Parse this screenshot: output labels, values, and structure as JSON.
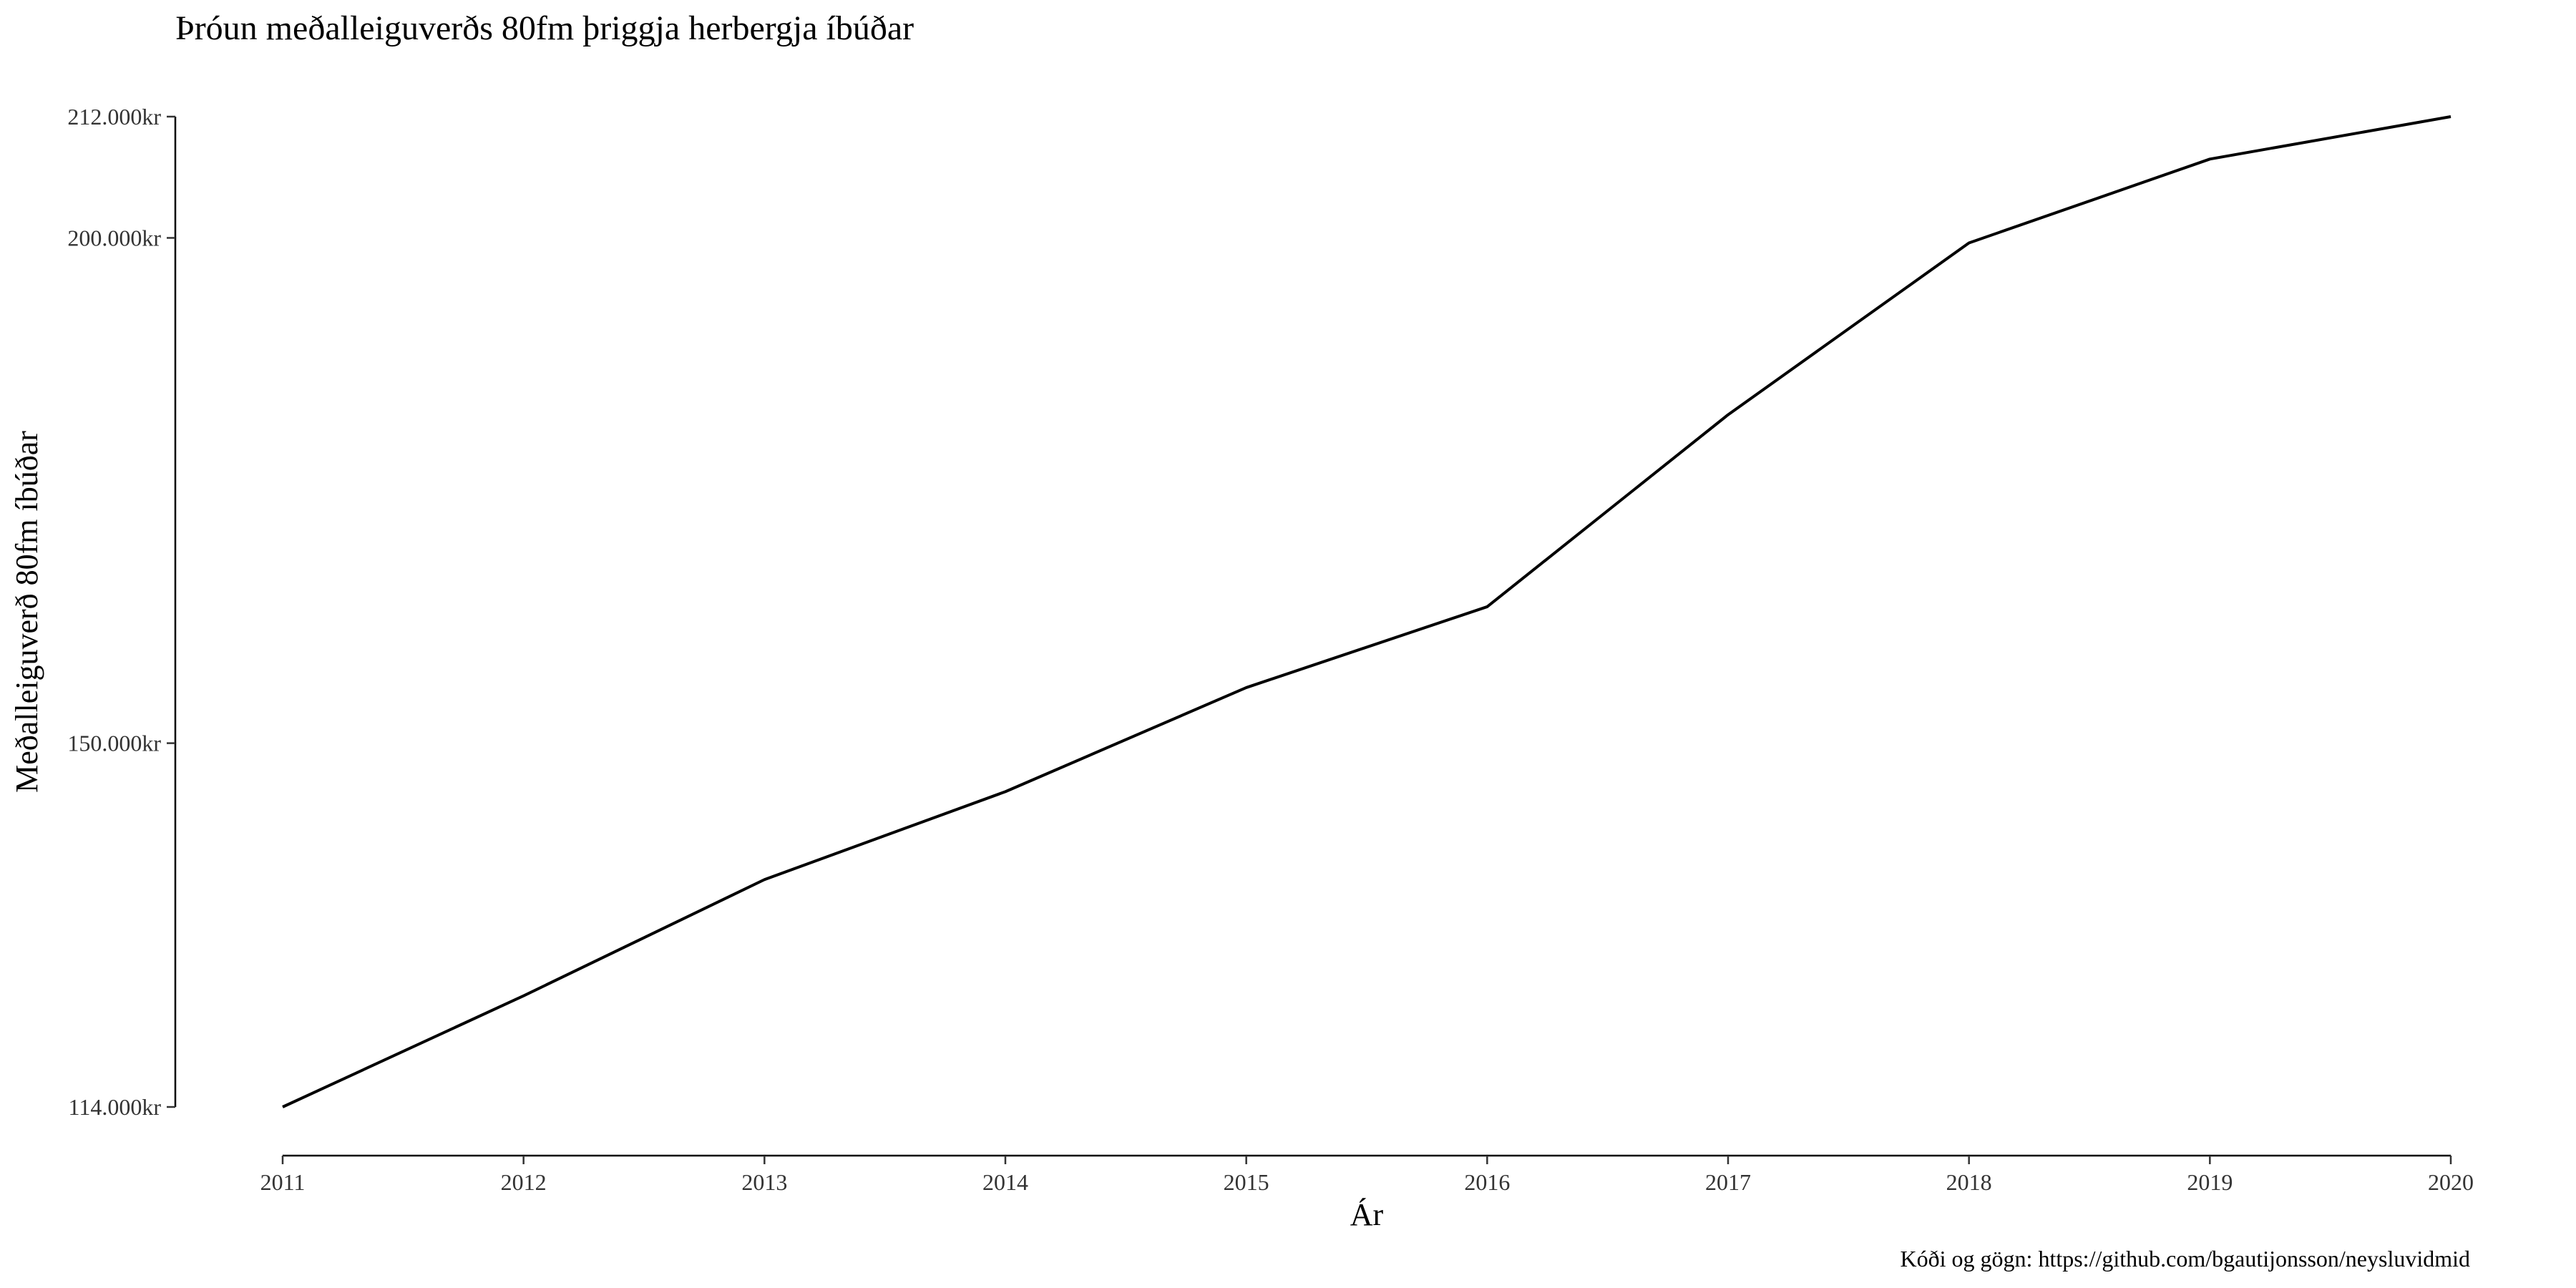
{
  "chart_data": {
    "type": "line",
    "title": "Þróun meðalleiguverðs 80fm þriggja herbergja íbúðar",
    "xlabel": "Ár",
    "ylabel": "Meðalleiguverð 80fm íbúðar",
    "caption": "Kóði og gögn: https://github.com/bgautijonsson/neysluvidmid",
    "x": [
      2011,
      2012,
      2013,
      2014,
      2015,
      2016,
      2017,
      2018,
      2019,
      2020
    ],
    "series": [
      {
        "values": [
          114000,
          125000,
          136500,
          145200,
          155500,
          163500,
          182500,
          199500,
          207800,
          212000
        ]
      }
    ],
    "y_ticks": [
      114000,
      150000,
      200000,
      212000
    ],
    "y_tick_labels": [
      "114.000kr",
      "150.000kr",
      "200.000kr",
      "212.000kr"
    ],
    "x_tick_labels": [
      "2011",
      "2012",
      "2013",
      "2014",
      "2015",
      "2016",
      "2017",
      "2018",
      "2019",
      "2020"
    ],
    "xlim": [
      2011,
      2020
    ],
    "ylim": [
      114000,
      212000
    ],
    "grid": false,
    "line_color": "#000000"
  }
}
